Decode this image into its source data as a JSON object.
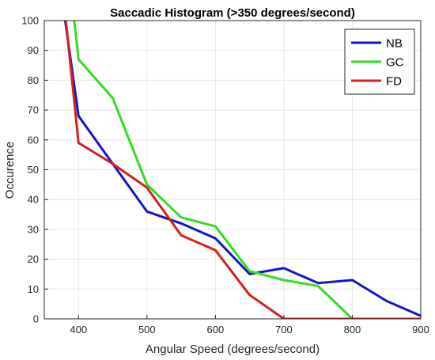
{
  "chart_data": {
    "type": "line",
    "title": "Saccadic Histogram (>350 degrees/second)",
    "xlabel": "Angular Speed (degrees/second)",
    "ylabel": "Occurence",
    "xlim": [
      350,
      900
    ],
    "ylim": [
      0,
      100
    ],
    "xticks": [
      400,
      500,
      600,
      700,
      800,
      900
    ],
    "yticks": [
      0,
      10,
      20,
      30,
      40,
      50,
      60,
      70,
      80,
      90,
      100
    ],
    "grid": true,
    "legend_position": "top-right",
    "series": [
      {
        "name": "NB",
        "color": "#1414c8",
        "x": [
          350,
          400,
          450,
          500,
          550,
          600,
          650,
          700,
          750,
          800,
          850,
          900
        ],
        "y": [
          150,
          68,
          52,
          36,
          32,
          27,
          15,
          17,
          12,
          13,
          6,
          1
        ]
      },
      {
        "name": "GC",
        "color": "#33dd22",
        "x": [
          350,
          400,
          450,
          500,
          550,
          600,
          650,
          700,
          750,
          800
        ],
        "y": [
          190,
          87,
          74,
          45,
          34,
          31,
          16,
          13,
          11,
          0
        ]
      },
      {
        "name": "FD",
        "color": "#d42020",
        "x": [
          350,
          400,
          450,
          500,
          550,
          600,
          650,
          700,
          750,
          800,
          850,
          900
        ],
        "y": [
          170,
          59,
          52,
          44,
          28,
          23,
          8,
          0,
          0,
          0,
          0,
          0
        ]
      }
    ]
  }
}
